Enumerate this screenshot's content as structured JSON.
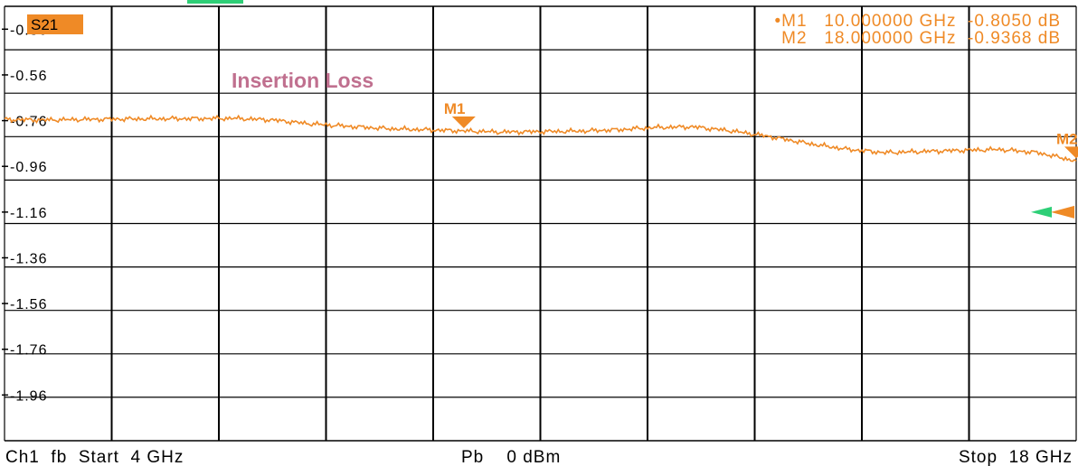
{
  "chart_data": {
    "type": "line",
    "title": "Insertion Loss",
    "trace_name": "S21",
    "x_unit": "GHz",
    "y_unit": "dB",
    "xlim": [
      4,
      18
    ],
    "ylim": [
      -2.16,
      -0.26
    ],
    "y_ticks": [
      "-0.36",
      "-0.56",
      "-0.76",
      "-0.96",
      "-1.16",
      "-1.36",
      "-1.56",
      "-1.76",
      "-1.96"
    ],
    "grid": true,
    "series": [
      {
        "x": [
          4.0,
          4.5,
          5.0,
          5.5,
          6.0,
          6.5,
          7.0,
          7.5,
          8.0,
          8.5,
          9.0,
          9.5,
          10.0,
          10.5,
          11.0,
          11.5,
          12.0,
          12.5,
          13.0,
          13.5,
          14.0,
          14.5,
          15.0,
          15.5,
          16.0,
          16.5,
          17.0,
          17.5,
          18.0
        ],
        "y": [
          -0.755,
          -0.757,
          -0.755,
          -0.753,
          -0.752,
          -0.751,
          -0.75,
          -0.757,
          -0.774,
          -0.785,
          -0.795,
          -0.8,
          -0.805,
          -0.81,
          -0.808,
          -0.806,
          -0.8,
          -0.79,
          -0.787,
          -0.805,
          -0.83,
          -0.86,
          -0.885,
          -0.9,
          -0.895,
          -0.89,
          -0.886,
          -0.9,
          -0.9368
        ]
      }
    ],
    "markers": [
      {
        "name": "M1",
        "x": 10.0,
        "y": -0.805,
        "readout": "•M1   10.000000 GHz  -0.8050 dB"
      },
      {
        "name": "M2",
        "x": 18.0,
        "y": -0.9368,
        "readout": "  M2   18.000000 GHz  -0.9368 dB"
      }
    ],
    "reference_level": -1.16
  },
  "footer": {
    "channel": "Ch1  fb  Start  4 GHz",
    "power": "Pb    0 dBm",
    "stop": "Stop  18 GHz"
  },
  "colors": {
    "trace": "#ef8a26",
    "reference": "#2ecf77",
    "title": "#c0708f",
    "badge": "#ef8a26"
  }
}
